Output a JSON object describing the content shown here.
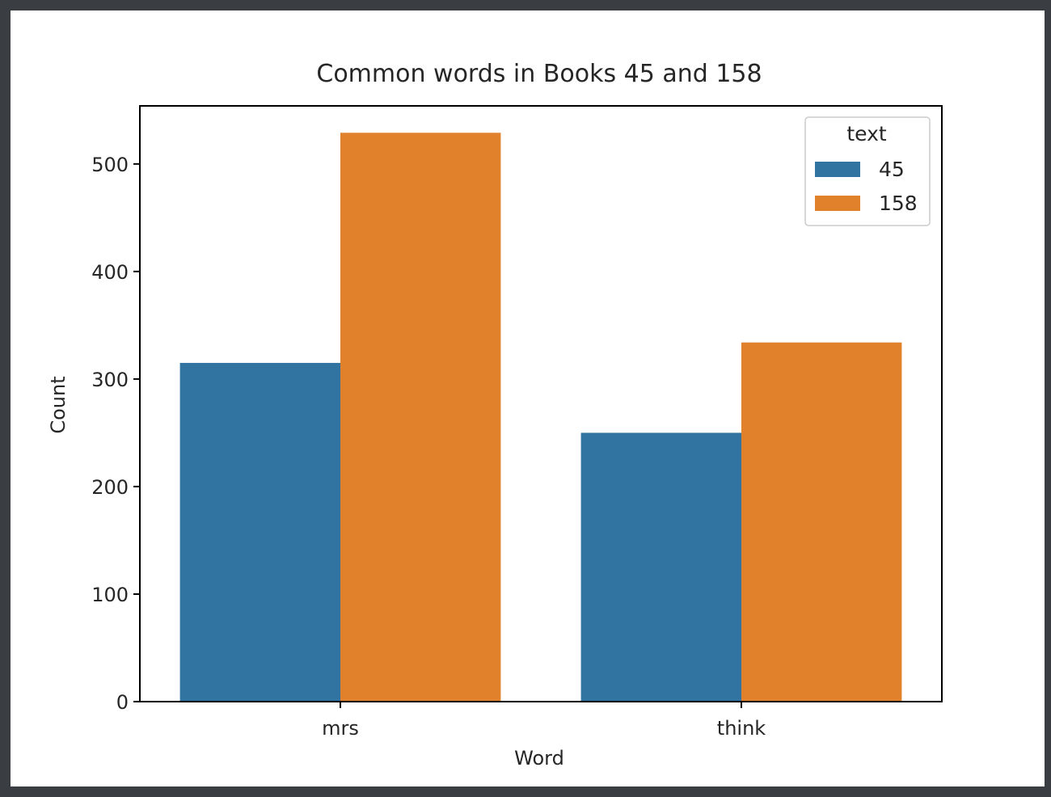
{
  "colors": {
    "page_border": "#3a3d42",
    "background": "#ffffff",
    "series_45": "#3274a1",
    "series_158": "#e1812c"
  },
  "chart_data": {
    "type": "bar",
    "title": "Common words in Books 45 and 158",
    "xlabel": "Word",
    "ylabel": "Count",
    "categories": [
      "mrs",
      "think"
    ],
    "series": [
      {
        "name": "45",
        "values": [
          315,
          250
        ],
        "color": "#3274a1"
      },
      {
        "name": "158",
        "values": [
          529,
          334
        ],
        "color": "#e1812c"
      }
    ],
    "ylim": [
      0,
      554
    ],
    "yticks": [
      0,
      100,
      200,
      300,
      400,
      500
    ],
    "legend": {
      "title": "text",
      "placement": "top-right"
    },
    "grid": false
  }
}
